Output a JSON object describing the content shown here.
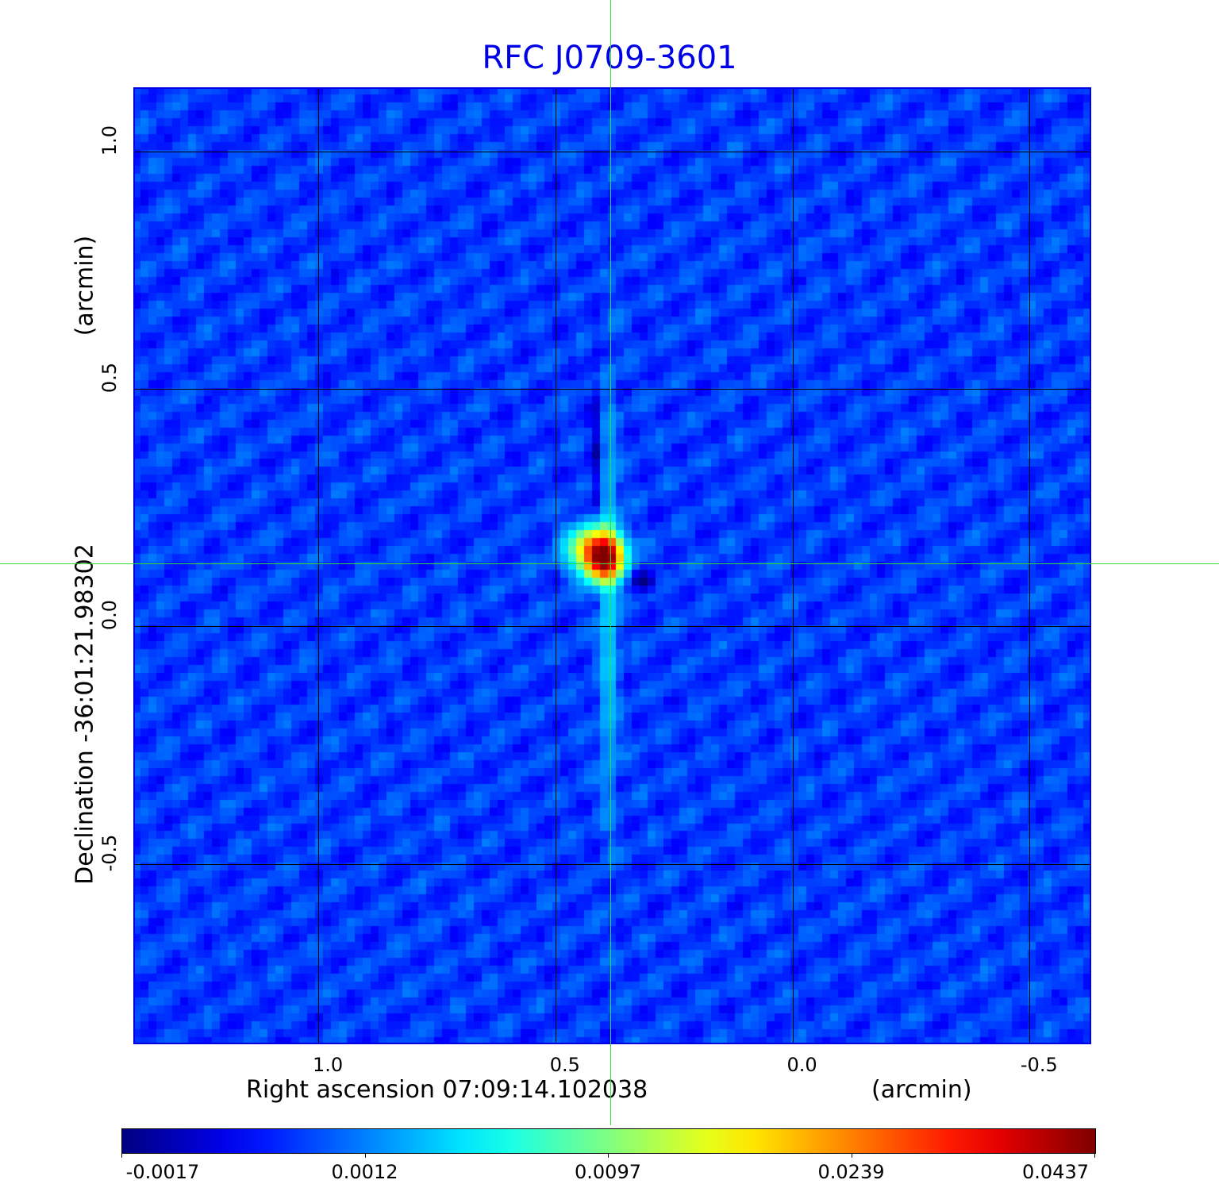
{
  "chart_data": {
    "type": "heatmap",
    "title": "RFC J0709-3601",
    "xlabel": "Right ascension  07:09:14.102038",
    "xunit": "(arcmin)",
    "ylabel": "Declination  -36:01:21.98302",
    "yunit": "(arcmin)",
    "xlim": [
      1.39,
      -0.63
    ],
    "ylim": [
      -0.88,
      1.135
    ],
    "xticks": [
      {
        "v": 1.0,
        "label": "1.0"
      },
      {
        "v": 0.5,
        "label": "0.5"
      },
      {
        "v": 0.0,
        "label": "0.0"
      },
      {
        "v": -0.5,
        "label": "-0.5"
      }
    ],
    "yticks": [
      {
        "v": 1.0,
        "label": "1.0"
      },
      {
        "v": 0.5,
        "label": "0.5"
      },
      {
        "v": 0.0,
        "label": "0.0"
      },
      {
        "v": -0.5,
        "label": "-0.5"
      }
    ],
    "grid": true,
    "crosshair": {
      "x": 0.385,
      "y": 0.132
    },
    "colormap": "jet",
    "colorbar": {
      "placement": "bottom",
      "ticks": [
        "-0.0017",
        "0.0012",
        "0.0097",
        "0.0239",
        "0.0437"
      ],
      "values": [
        -0.0017,
        0.0012,
        0.0097,
        0.0239,
        0.0437
      ]
    },
    "pixel_size_arcmin": 0.0167,
    "background_level": 0.0004,
    "noise_rms": 0.00045,
    "components": [
      {
        "x": 0.405,
        "y": 0.152,
        "peak": 0.0437,
        "sx": 0.025,
        "sy": 0.03
      },
      {
        "x": 0.44,
        "y": 0.17,
        "peak": 0.012,
        "sx": 0.03,
        "sy": 0.03
      },
      {
        "x": 0.395,
        "y": 0.06,
        "peak": 0.004,
        "sx": 0.012,
        "sy": 0.25
      },
      {
        "x": 0.42,
        "y": 0.35,
        "peak": -0.0012,
        "sx": 0.01,
        "sy": 0.15
      },
      {
        "x": 0.32,
        "y": 0.1,
        "peak": -0.0018,
        "sx": 0.02,
        "sy": 0.015
      }
    ]
  }
}
